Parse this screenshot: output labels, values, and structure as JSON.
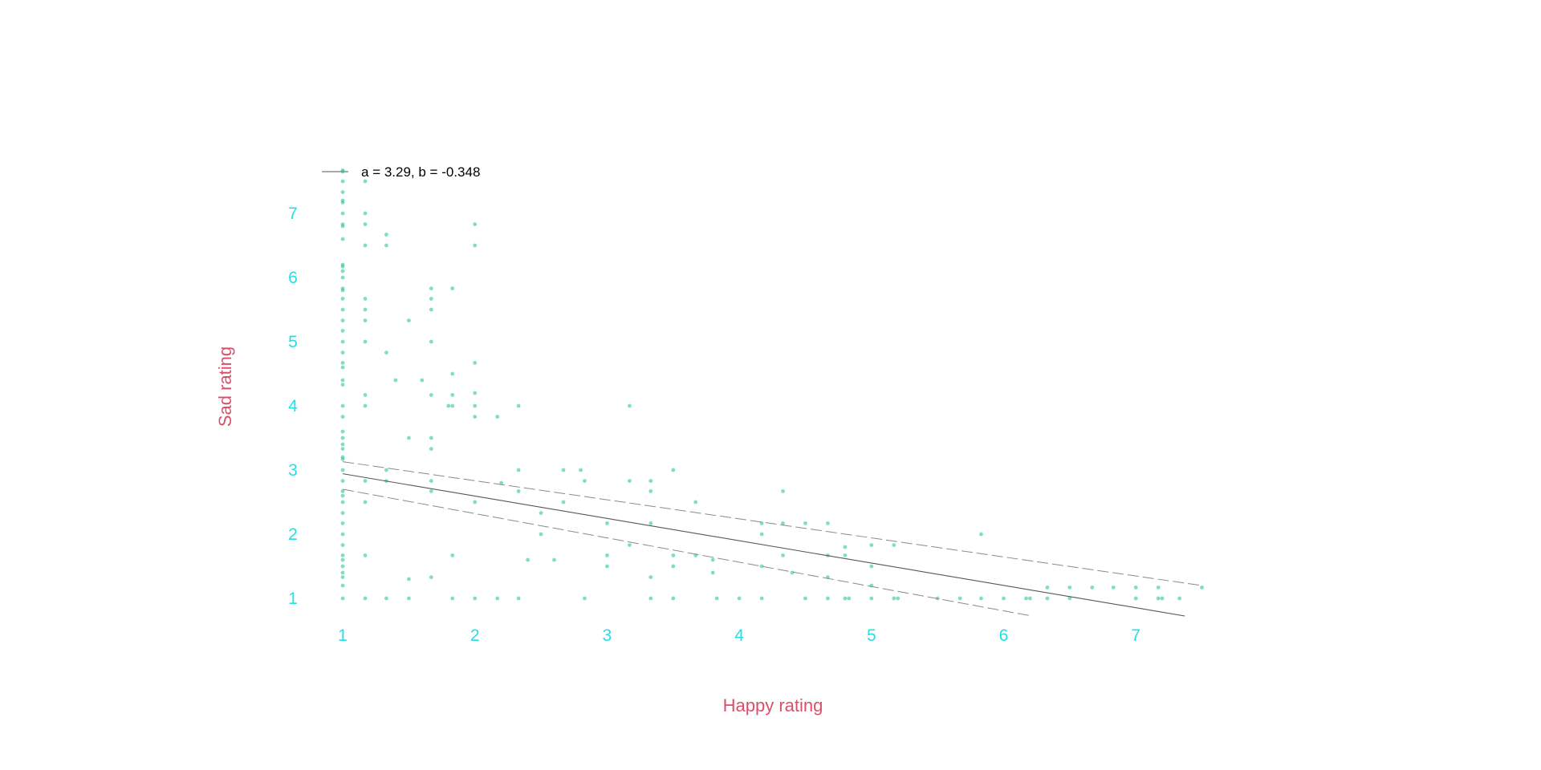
{
  "chart_data": {
    "type": "scatter",
    "title": "",
    "xlabel": "Happy rating",
    "ylabel": "Sad rating",
    "xlim": [
      0.85,
      7.55
    ],
    "ylim": [
      0.7,
      7.75
    ],
    "x_ticks": [
      "1",
      "2",
      "3",
      "4",
      "5",
      "6",
      "7"
    ],
    "y_ticks": [
      "1",
      "2",
      "3",
      "4",
      "5",
      "6",
      "7"
    ],
    "grid": false,
    "legend": {
      "placement": "top-left",
      "label": "a = 3.29, b = -0.348"
    },
    "colors": {
      "points": "#2ec4a0",
      "ticks": "#22e0e6",
      "axis_labels": "#d9506a",
      "fit_line": "#555555",
      "ci_line": "#8a8a8a"
    },
    "fit": {
      "a": 3.29,
      "b": -0.348,
      "x_range": [
        1,
        7.37
      ]
    },
    "ci_upper": [
      [
        1,
        3.13
      ],
      [
        7.5,
        1.2
      ]
    ],
    "ci_lower": [
      [
        1,
        2.7
      ],
      [
        6.2,
        0.73
      ]
    ],
    "points": [
      [
        1,
        7.67
      ],
      [
        1,
        7.5
      ],
      [
        1,
        7.33
      ],
      [
        1,
        7.2
      ],
      [
        1,
        7.17
      ],
      [
        1,
        7
      ],
      [
        1,
        6.83
      ],
      [
        1,
        6.8
      ],
      [
        1,
        6.6
      ],
      [
        1,
        6.2
      ],
      [
        1,
        6.17
      ],
      [
        1,
        6.1
      ],
      [
        1,
        6
      ],
      [
        1,
        5.83
      ],
      [
        1,
        5.8
      ],
      [
        1,
        5.67
      ],
      [
        1,
        5.5
      ],
      [
        1,
        5.33
      ],
      [
        1,
        5.17
      ],
      [
        1,
        5
      ],
      [
        1,
        4.83
      ],
      [
        1,
        4.67
      ],
      [
        1,
        4.6
      ],
      [
        1,
        4.4
      ],
      [
        1,
        4.33
      ],
      [
        1,
        4
      ],
      [
        1,
        3.83
      ],
      [
        1,
        3.6
      ],
      [
        1,
        3.5
      ],
      [
        1,
        3.4
      ],
      [
        1,
        3.33
      ],
      [
        1,
        3.2
      ],
      [
        1,
        3.17
      ],
      [
        1,
        3
      ],
      [
        1,
        2.83
      ],
      [
        1,
        2.67
      ],
      [
        1,
        2.6
      ],
      [
        1,
        2.5
      ],
      [
        1,
        2.33
      ],
      [
        1,
        2.17
      ],
      [
        1,
        2
      ],
      [
        1,
        1.83
      ],
      [
        1,
        1.67
      ],
      [
        1,
        1.6
      ],
      [
        1,
        1.5
      ],
      [
        1,
        1.4
      ],
      [
        1,
        1.33
      ],
      [
        1,
        1.2
      ],
      [
        1,
        1
      ],
      [
        1.17,
        7.5
      ],
      [
        1.17,
        7
      ],
      [
        1.17,
        6.83
      ],
      [
        1.17,
        6.5
      ],
      [
        1.17,
        5.67
      ],
      [
        1.17,
        5.5
      ],
      [
        1.17,
        5.33
      ],
      [
        1.17,
        5
      ],
      [
        1.17,
        4.17
      ],
      [
        1.17,
        4
      ],
      [
        1.17,
        2.83
      ],
      [
        1.17,
        2.5
      ],
      [
        1.17,
        1.67
      ],
      [
        1.17,
        1
      ],
      [
        1.33,
        6.67
      ],
      [
        1.33,
        6.5
      ],
      [
        1.33,
        4.83
      ],
      [
        1.33,
        3
      ],
      [
        1.33,
        2.83
      ],
      [
        1.33,
        1
      ],
      [
        1.4,
        4.4
      ],
      [
        1.5,
        5.33
      ],
      [
        1.5,
        3.5
      ],
      [
        1.5,
        1.3
      ],
      [
        1.5,
        1
      ],
      [
        1.6,
        4.4
      ],
      [
        1.67,
        5.83
      ],
      [
        1.67,
        5.67
      ],
      [
        1.67,
        5.5
      ],
      [
        1.67,
        5
      ],
      [
        1.67,
        4.17
      ],
      [
        1.67,
        3.5
      ],
      [
        1.67,
        3.33
      ],
      [
        1.67,
        2.83
      ],
      [
        1.67,
        2.67
      ],
      [
        1.67,
        1.33
      ],
      [
        1.8,
        4
      ],
      [
        1.83,
        5.83
      ],
      [
        1.83,
        4.5
      ],
      [
        1.83,
        4.17
      ],
      [
        1.83,
        4
      ],
      [
        1.83,
        1.67
      ],
      [
        1.83,
        1
      ],
      [
        2,
        6.83
      ],
      [
        2,
        6.5
      ],
      [
        2,
        4.67
      ],
      [
        2,
        4.2
      ],
      [
        2,
        4
      ],
      [
        2,
        3.83
      ],
      [
        2,
        2.5
      ],
      [
        2,
        1
      ],
      [
        2.17,
        3.83
      ],
      [
        2.2,
        2.8
      ],
      [
        2.17,
        1
      ],
      [
        2.33,
        4
      ],
      [
        2.33,
        3
      ],
      [
        2.33,
        2.67
      ],
      [
        2.33,
        1
      ],
      [
        2.4,
        1.6
      ],
      [
        2.5,
        2.33
      ],
      [
        2.5,
        2
      ],
      [
        2.6,
        1.6
      ],
      [
        2.67,
        3
      ],
      [
        2.67,
        2.5
      ],
      [
        2.8,
        3
      ],
      [
        2.83,
        2.83
      ],
      [
        2.83,
        1
      ],
      [
        3,
        2.17
      ],
      [
        3,
        1.67
      ],
      [
        3,
        1.5
      ],
      [
        3.17,
        4
      ],
      [
        3.17,
        2.83
      ],
      [
        3.17,
        1.83
      ],
      [
        3.33,
        2.83
      ],
      [
        3.33,
        2.67
      ],
      [
        3.33,
        2.17
      ],
      [
        3.33,
        1.33
      ],
      [
        3.33,
        1
      ],
      [
        3.5,
        3
      ],
      [
        3.5,
        1.67
      ],
      [
        3.5,
        1.5
      ],
      [
        3.5,
        1
      ],
      [
        3.67,
        2.5
      ],
      [
        3.67,
        1.67
      ],
      [
        3.8,
        1.6
      ],
      [
        3.8,
        1.4
      ],
      [
        3.83,
        1
      ],
      [
        4,
        1
      ],
      [
        4.17,
        2.17
      ],
      [
        4.17,
        2
      ],
      [
        4.17,
        1.5
      ],
      [
        4.17,
        1
      ],
      [
        4.33,
        2.67
      ],
      [
        4.33,
        2.17
      ],
      [
        4.33,
        1.67
      ],
      [
        4.4,
        1.4
      ],
      [
        4.5,
        2.17
      ],
      [
        4.5,
        1
      ],
      [
        4.67,
        2.17
      ],
      [
        4.67,
        1.67
      ],
      [
        4.67,
        1.33
      ],
      [
        4.67,
        1
      ],
      [
        4.8,
        1.8
      ],
      [
        4.8,
        1.67
      ],
      [
        4.8,
        1
      ],
      [
        4.83,
        1
      ],
      [
        5,
        1.83
      ],
      [
        5,
        1.5
      ],
      [
        5,
        1.2
      ],
      [
        5,
        1
      ],
      [
        5.17,
        1.83
      ],
      [
        5.17,
        1
      ],
      [
        5.2,
        1
      ],
      [
        5.5,
        1
      ],
      [
        5.67,
        1
      ],
      [
        5.83,
        2
      ],
      [
        5.83,
        1
      ],
      [
        6,
        1
      ],
      [
        6.17,
        1
      ],
      [
        6.2,
        1
      ],
      [
        6.33,
        1.17
      ],
      [
        6.33,
        1
      ],
      [
        6.5,
        1.17
      ],
      [
        6.5,
        1
      ],
      [
        6.67,
        1.17
      ],
      [
        6.83,
        1.17
      ],
      [
        7,
        1.17
      ],
      [
        7,
        1
      ],
      [
        7.17,
        1.17
      ],
      [
        7.17,
        1
      ],
      [
        7.2,
        1
      ],
      [
        7.33,
        1
      ],
      [
        7.5,
        1.17
      ]
    ]
  }
}
